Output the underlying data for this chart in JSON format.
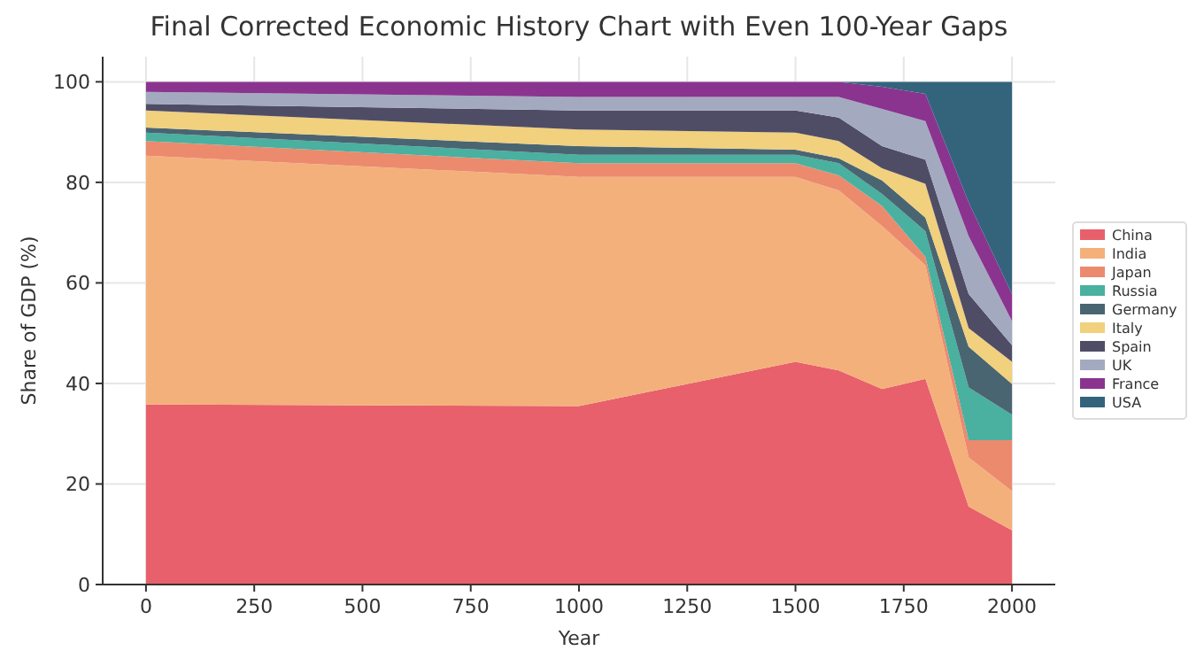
{
  "chart_data": {
    "type": "area",
    "stacked": true,
    "title": "Final Corrected Economic History Chart with Even 100-Year Gaps",
    "xlabel": "Year",
    "ylabel": "Share of GDP (%)",
    "x": [
      0,
      1000,
      1500,
      1600,
      1700,
      1800,
      1900,
      2000
    ],
    "series": [
      {
        "name": "China",
        "color": "#e8606b",
        "values": [
          35.8,
          35.5,
          44.3,
          42.6,
          38.9,
          40.9,
          15.5,
          10.8
        ]
      },
      {
        "name": "India",
        "color": "#f4b07b",
        "values": [
          49.5,
          45.6,
          36.8,
          35.8,
          32.4,
          22.6,
          9.8,
          7.8
        ]
      },
      {
        "name": "Japan",
        "color": "#ec8a6e",
        "values": [
          2.9,
          2.7,
          2.7,
          3.0,
          4.0,
          1.7,
          3.4,
          10.1
        ]
      },
      {
        "name": "Russia",
        "color": "#4ab09f",
        "values": [
          1.7,
          1.7,
          1.7,
          2.4,
          2.4,
          5.1,
          10.5,
          5.1
        ]
      },
      {
        "name": "Germany",
        "color": "#4a6572",
        "values": [
          1.0,
          1.7,
          1.0,
          1.0,
          2.7,
          2.7,
          8.1,
          6.1
        ]
      },
      {
        "name": "Italy",
        "color": "#f1d07e",
        "values": [
          3.4,
          3.3,
          3.4,
          3.4,
          2.4,
          6.7,
          3.7,
          4.4
        ]
      },
      {
        "name": "Spain",
        "color": "#4f4d66",
        "values": [
          1.3,
          3.8,
          4.4,
          4.7,
          4.4,
          4.8,
          6.8,
          3.3
        ]
      },
      {
        "name": "UK",
        "color": "#a3aabf",
        "values": [
          2.4,
          2.7,
          2.7,
          4.1,
          7.4,
          7.7,
          11.5,
          4.8
        ]
      },
      {
        "name": "France",
        "color": "#8a348f",
        "values": [
          2.0,
          3.0,
          3.0,
          3.0,
          4.4,
          5.4,
          6.7,
          5.4
        ]
      },
      {
        "name": "USA",
        "color": "#33647c",
        "values": [
          0,
          0,
          0,
          0,
          1.0,
          2.4,
          24.0,
          42.2
        ]
      }
    ],
    "xlim": [
      -100,
      2100
    ],
    "xticks": [
      0,
      250,
      500,
      750,
      1000,
      1250,
      1500,
      1750,
      2000
    ],
    "ylim": [
      0,
      105
    ],
    "yticks": [
      0,
      20,
      40,
      60,
      80,
      100
    ],
    "grid": true,
    "legend": "right"
  }
}
